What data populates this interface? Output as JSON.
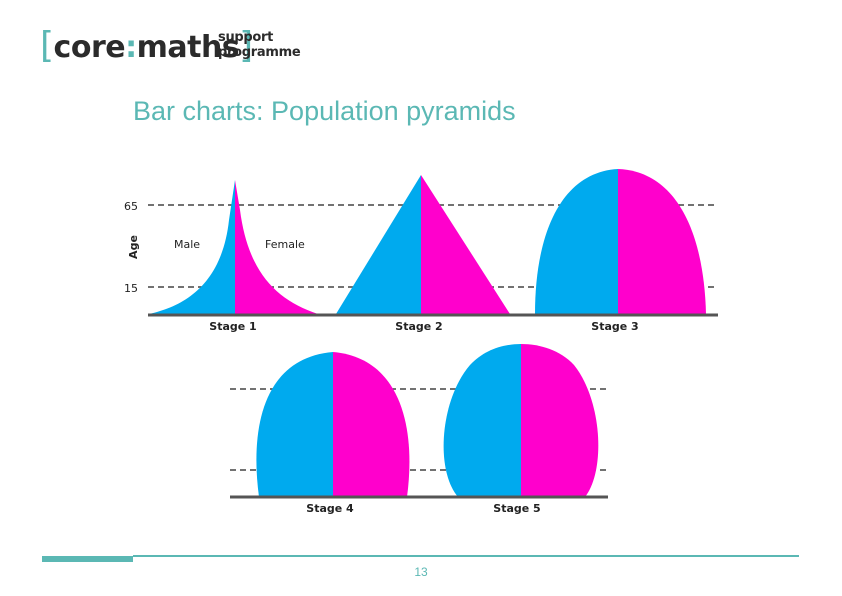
{
  "logo": {
    "open_bracket": "[",
    "core": "core",
    "colon": ":",
    "maths": "maths",
    "close_bracket": "]",
    "line1": "support",
    "line2": "programme"
  },
  "title": "Bar charts: Population pyramids",
  "axis": {
    "label": "Age",
    "tick_65": "65",
    "tick_15": "15"
  },
  "legend": {
    "male": "Male",
    "female": "Female"
  },
  "stages": [
    {
      "label": "Stage 1",
      "shape": "concave-narrow-peak"
    },
    {
      "label": "Stage 2",
      "shape": "triangle"
    },
    {
      "label": "Stage 3",
      "shape": "dome"
    },
    {
      "label": "Stage 4",
      "shape": "dome"
    },
    {
      "label": "Stage 5",
      "shape": "dome-narrow-base"
    }
  ],
  "colors": {
    "male": "#00aaee",
    "female": "#ff00cc",
    "accent": "#5bb8b4"
  },
  "page_number": "13"
}
